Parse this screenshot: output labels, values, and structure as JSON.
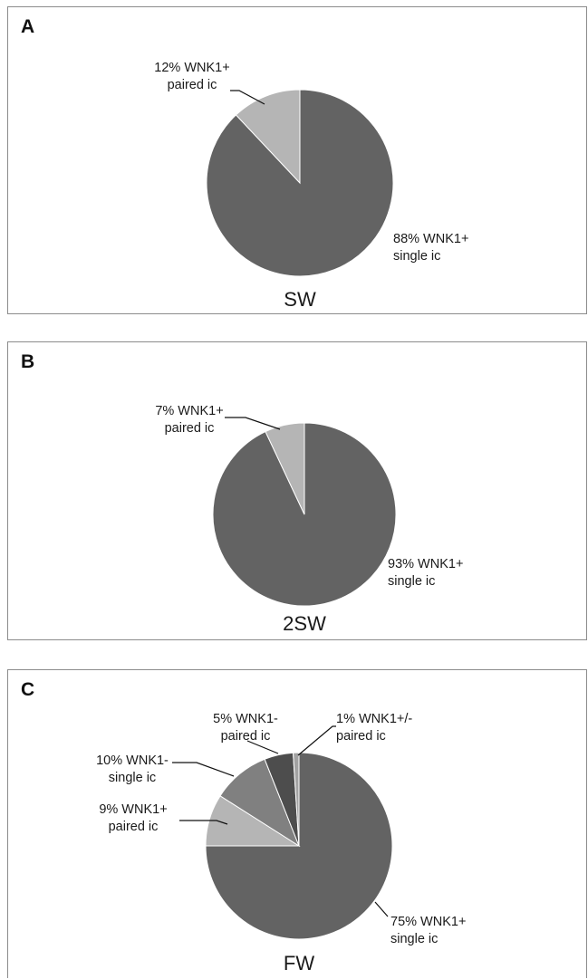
{
  "colors": {
    "wnk1_pos_single": "#636363",
    "wnk1_pos_paired": "#b5b5b5",
    "wnk1_neg_single": "#808080",
    "wnk1_neg_paired": "#4d4d4d",
    "wnk1_posneg_paired": "#a2a2a2",
    "leader": "#111111"
  },
  "chart_data": [
    {
      "type": "pie",
      "panel": "A",
      "title": "SW",
      "slices": [
        {
          "value": 88,
          "label_lines": [
            "88% WNK1+",
            "single ic"
          ],
          "color_key": "wnk1_pos_single"
        },
        {
          "value": 12,
          "label_lines": [
            "12% WNK1+",
            "paired ic"
          ],
          "color_key": "wnk1_pos_paired"
        }
      ]
    },
    {
      "type": "pie",
      "panel": "B",
      "title": "2SW",
      "slices": [
        {
          "value": 93,
          "label_lines": [
            "93% WNK1+",
            "single ic"
          ],
          "color_key": "wnk1_pos_single"
        },
        {
          "value": 7,
          "label_lines": [
            "7% WNK1+",
            "paired ic"
          ],
          "color_key": "wnk1_pos_paired"
        }
      ]
    },
    {
      "type": "pie",
      "panel": "C",
      "title": "FW",
      "slices": [
        {
          "value": 75,
          "label_lines": [
            "75% WNK1+",
            "single ic"
          ],
          "color_key": "wnk1_pos_single"
        },
        {
          "value": 9,
          "label_lines": [
            "9% WNK1+",
            "paired ic"
          ],
          "color_key": "wnk1_pos_paired"
        },
        {
          "value": 10,
          "label_lines": [
            "10% WNK1-",
            "single ic"
          ],
          "color_key": "wnk1_neg_single"
        },
        {
          "value": 5,
          "label_lines": [
            "5% WNK1-",
            "paired ic"
          ],
          "color_key": "wnk1_neg_paired"
        },
        {
          "value": 1,
          "label_lines": [
            "1% WNK1+/-",
            "paired ic"
          ],
          "color_key": "wnk1_posneg_paired"
        }
      ]
    }
  ]
}
